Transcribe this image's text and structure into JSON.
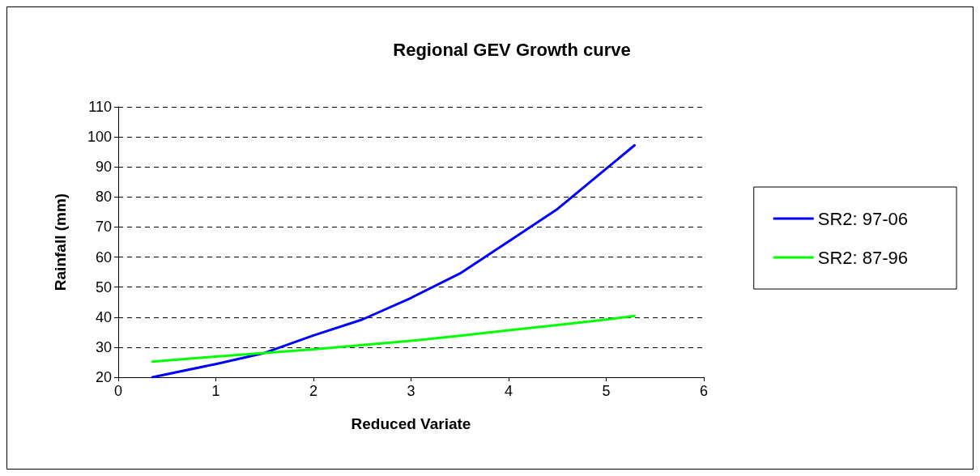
{
  "chart_data": {
    "type": "line",
    "title": "Regional GEV Growth curve",
    "xlabel": "Reduced Variate",
    "ylabel": "Rainfall (mm)",
    "xlim": [
      0,
      6
    ],
    "xticks": [
      0,
      1,
      2,
      3,
      4,
      5,
      6
    ],
    "ylim": [
      20,
      110
    ],
    "yticks": [
      20,
      30,
      40,
      50,
      60,
      70,
      80,
      90,
      100,
      110
    ],
    "grid": "y",
    "legend": "right",
    "marker": "none",
    "line_style": "solid",
    "series": [
      {
        "name": "SR2: 97-06",
        "color": "#0000ff",
        "x": [
          0.35,
          1,
          1.5,
          2,
          2.5,
          3,
          3.5,
          4,
          4.5,
          5,
          5.29
        ],
        "values": [
          20,
          24.4,
          28.1,
          33.9,
          39.2,
          46.4,
          54.5,
          65.2,
          76,
          89.4,
          97.2
        ]
      },
      {
        "name": "SR2: 87-96",
        "color": "#00ff00",
        "x": [
          0.35,
          1,
          1.5,
          2,
          2.5,
          3,
          3.5,
          4,
          4.5,
          5,
          5.29
        ],
        "values": [
          25.2,
          26.9,
          28.1,
          29.3,
          30.7,
          32.1,
          33.8,
          35.6,
          37.4,
          39.2,
          40.4
        ]
      }
    ]
  }
}
